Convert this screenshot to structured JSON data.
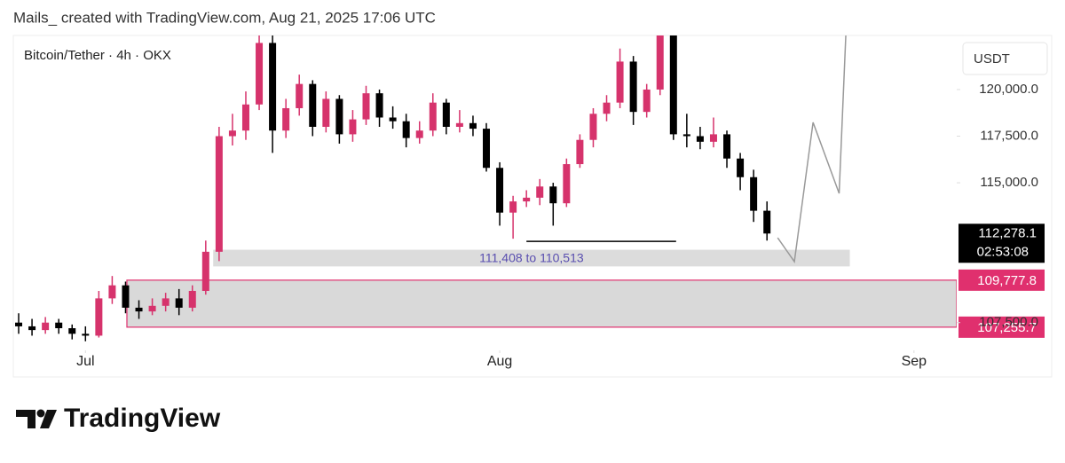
{
  "header": "Mails_ created with TradingView.com, Aug 21, 2025 17:06 UTC",
  "footer": "TradingView",
  "chart_data": {
    "type": "candlestick",
    "symbol": "Bitcoin/Tether · 4h · OKX",
    "currency": "USDT",
    "up_color": "#d6336c",
    "down_color": "#000000",
    "xlim": [
      -0.4,
      70.2
    ],
    "xticks": [
      {
        "value": 5,
        "label": "Jul"
      },
      {
        "value": 36,
        "label": "Aug"
      },
      {
        "value": 67,
        "label": "Sep"
      }
    ],
    "ylim": [
      106250,
      122900
    ],
    "yticks": [
      {
        "value": 107500,
        "label": "107,500.0"
      },
      {
        "value": 115000,
        "label": "115,000.0"
      },
      {
        "value": 117500,
        "label": "117,500.0"
      },
      {
        "value": 120000,
        "label": "120,000.0"
      }
    ],
    "open": [
      107500,
      107300,
      107100,
      107500,
      107200,
      106900,
      106800,
      108800,
      109500,
      108300,
      108100,
      108400,
      108800,
      108300,
      109200,
      111300,
      117500,
      117800,
      119200,
      122500,
      117800,
      119000,
      120300,
      118000,
      119500,
      117600,
      118400,
      119800,
      118500,
      118300,
      117400,
      117800,
      119300,
      118000,
      118200,
      117900,
      115800,
      113400,
      114000,
      114200,
      114800,
      113900,
      116000,
      117300,
      118700,
      119300,
      121500,
      118800,
      120000,
      123100,
      117600,
      117500,
      117200,
      117600,
      116300,
      115300,
      113500
    ],
    "high": [
      108000,
      107700,
      107800,
      107700,
      107400,
      107300,
      109200,
      110000,
      109700,
      108700,
      108800,
      109100,
      109300,
      109500,
      111900,
      118000,
      118700,
      119900,
      122900,
      123000,
      119500,
      120800,
      120500,
      119900,
      119700,
      118900,
      120200,
      120000,
      119100,
      118700,
      118300,
      119800,
      119500,
      118900,
      118600,
      118200,
      116100,
      114300,
      114600,
      115200,
      115000,
      116300,
      117600,
      119000,
      119700,
      122200,
      121800,
      120300,
      123700,
      123600,
      118700,
      118000,
      118500,
      117800,
      116600,
      115700,
      114000
    ],
    "low": [
      106900,
      106800,
      106900,
      106900,
      106600,
      106500,
      106700,
      108500,
      108000,
      107700,
      107900,
      108100,
      107900,
      108100,
      109000,
      110800,
      117000,
      117300,
      118900,
      116600,
      117400,
      118600,
      117500,
      117700,
      117100,
      117200,
      118100,
      118000,
      117900,
      116900,
      117100,
      117500,
      117600,
      117700,
      117500,
      115600,
      112700,
      112000,
      113700,
      113800,
      112700,
      113700,
      115800,
      116900,
      118300,
      119000,
      118100,
      118500,
      119700,
      117300,
      116900,
      116800,
      116900,
      115800,
      114600,
      112900,
      111900
    ],
    "close": [
      107300,
      107100,
      107500,
      107200,
      106900,
      106800,
      108800,
      109500,
      108300,
      108100,
      108400,
      108800,
      108300,
      109200,
      111300,
      117500,
      117800,
      119200,
      122500,
      117800,
      119000,
      120300,
      118000,
      119500,
      117600,
      118400,
      119800,
      118500,
      118300,
      117400,
      117800,
      119300,
      118000,
      118200,
      117900,
      115800,
      113400,
      114000,
      114200,
      114800,
      113900,
      116000,
      117300,
      118700,
      119300,
      121500,
      118800,
      120000,
      123100,
      117600,
      117500,
      117200,
      117600,
      116300,
      115300,
      113500,
      112278.1
    ],
    "last_price": {
      "value": 112278.1,
      "label": "112,278.1",
      "countdown": "02:53:08"
    },
    "zone": {
      "top": 109777.8,
      "bottom": 107255.7,
      "top_label": "109,777.8",
      "bottom_label": "107,255.7",
      "start": 8.1,
      "color": "#e0306e"
    },
    "band": {
      "high": 111408,
      "low": 110513,
      "label": "111,408 to 110,513",
      "start": 14.56,
      "end": 62.2
    },
    "support": {
      "value": 111860,
      "start": 38,
      "end": 49.2
    },
    "projection": {
      "x": [
        56.8,
        58.05,
        59.45,
        61.4,
        61.9
      ],
      "values": [
        112050,
        110770,
        118240,
        114430,
        122900
      ],
      "color": "#999999"
    }
  }
}
